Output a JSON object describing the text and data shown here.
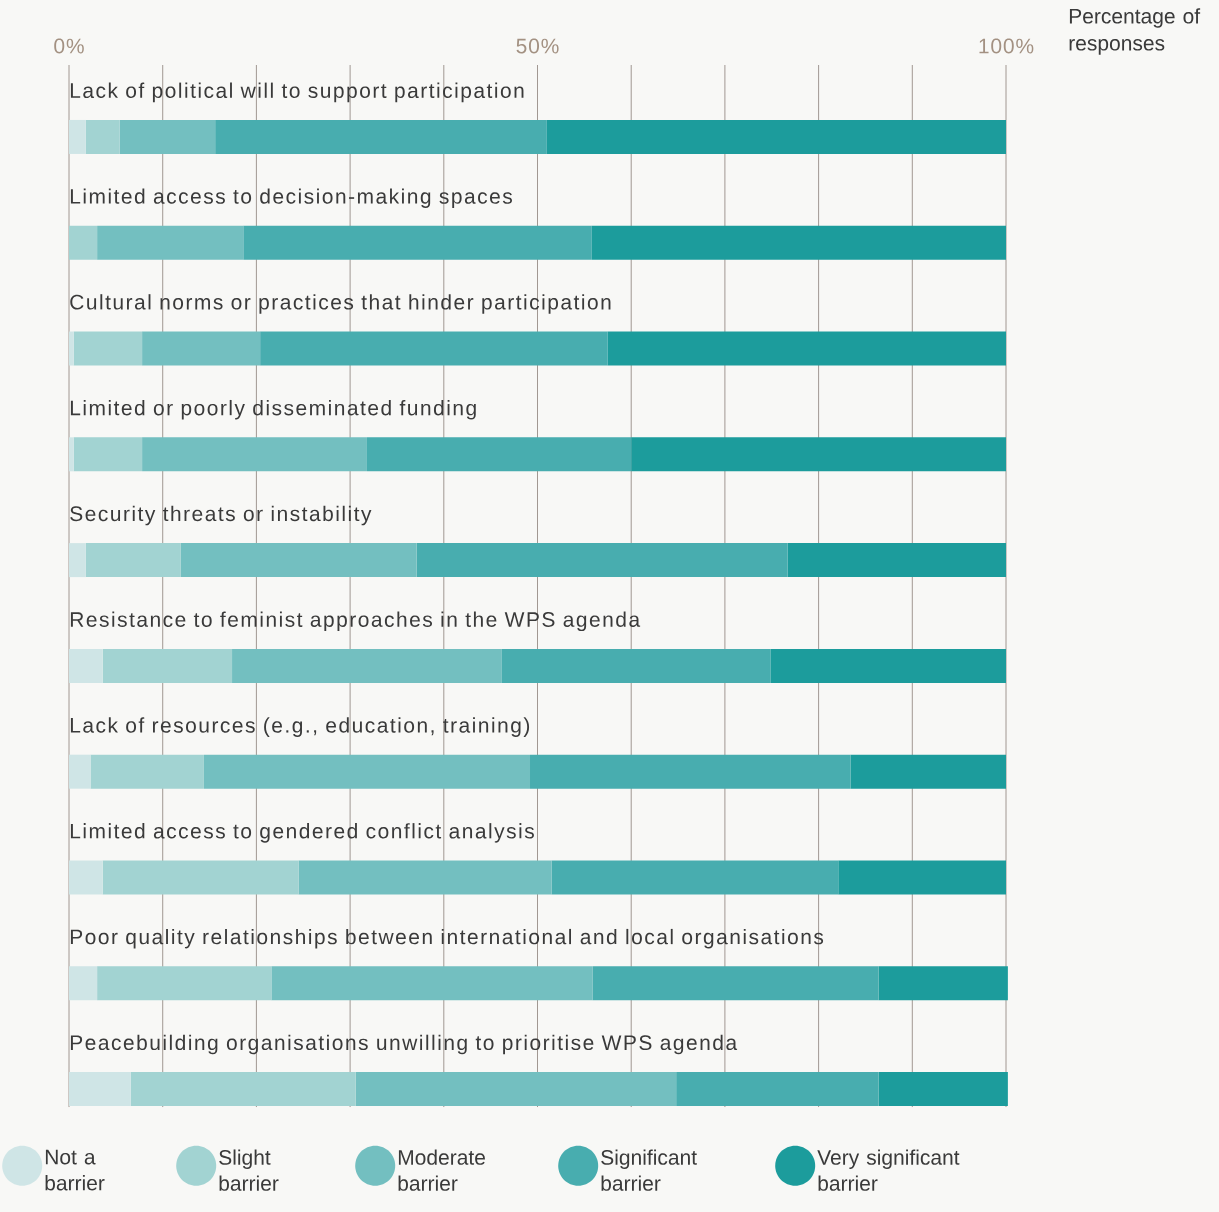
{
  "chart_data": {
    "type": "bar",
    "orientation": "horizontal",
    "stacked": true,
    "xlabel": "Percentage of responses",
    "categories": [
      "Lack of political will to support participation",
      "Limited access to decision-making spaces",
      "Cultural norms or practices that hinder participation",
      "Limited or poorly disseminated funding",
      "Security threats or instability",
      "Resistance to feminist approaches in the WPS agenda",
      "Lack of resources (e.g., education, training)",
      "Limited access to gendered conflict analysis",
      "Poor quality relationships between international and local organisations",
      "Peacebuilding organisations unwilling to prioritise WPS agenda"
    ],
    "series": [
      {
        "name": "Not a barrier",
        "color": "#cfe5e6",
        "values": [
          1.8,
          0,
          0.5,
          0.5,
          1.8,
          3.6,
          2.3,
          3.6,
          3.0,
          6.6
        ]
      },
      {
        "name": "Slight barrier",
        "color": "#a2d3d2",
        "values": [
          3.6,
          3.0,
          7.3,
          7.3,
          10.1,
          13.8,
          12.1,
          20.9,
          18.6,
          24.0
        ]
      },
      {
        "name": "Moderate barrier",
        "color": "#73bfc0",
        "values": [
          10.2,
          15.6,
          12.6,
          24.0,
          25.2,
          28.8,
          34.8,
          27.0,
          34.3,
          34.2
        ]
      },
      {
        "name": "Significant barrier",
        "color": "#48adaf",
        "values": [
          35.4,
          37.2,
          37.1,
          28.2,
          39.6,
          28.7,
          34.2,
          30.6,
          30.5,
          21.6
        ]
      },
      {
        "name": "Very significant barrier",
        "color": "#1c9c9c",
        "values": [
          49.0,
          44.2,
          42.5,
          40.0,
          23.3,
          25.1,
          16.6,
          17.9,
          13.8,
          13.8
        ]
      }
    ],
    "xlim": [
      0,
      100
    ],
    "xticks": [
      {
        "value": 0,
        "label": "0%"
      },
      {
        "value": 10,
        "label": null
      },
      {
        "value": 20,
        "label": null
      },
      {
        "value": 30,
        "label": null
      },
      {
        "value": 40,
        "label": null
      },
      {
        "value": 50,
        "label": "50%"
      },
      {
        "value": 60,
        "label": null
      },
      {
        "value": 70,
        "label": null
      },
      {
        "value": 80,
        "label": null
      },
      {
        "value": 90,
        "label": null
      },
      {
        "value": 100,
        "label": "100%"
      }
    ],
    "grid": "x",
    "legend": "bottom"
  }
}
